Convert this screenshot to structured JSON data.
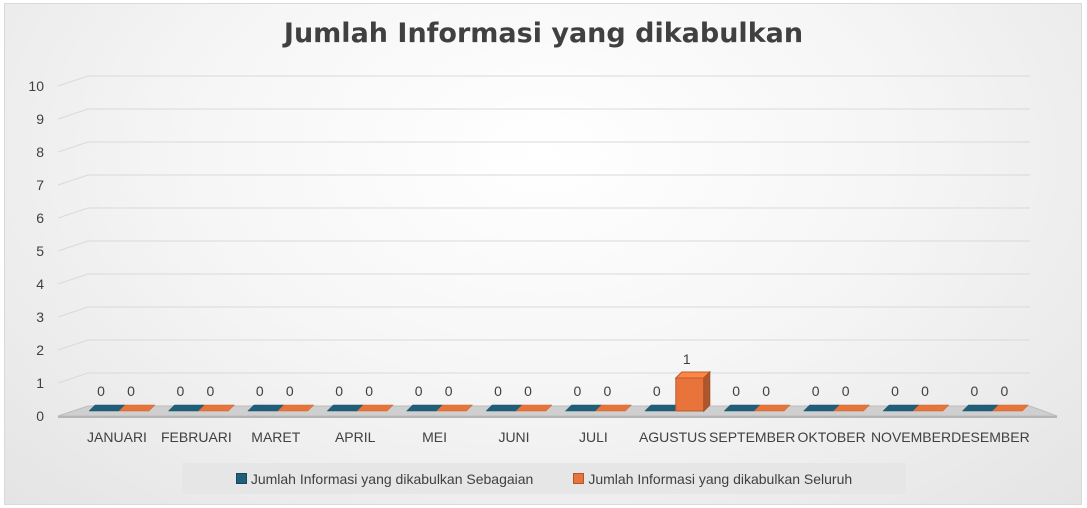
{
  "chart_data": {
    "type": "bar",
    "title": "Jumlah Informasi yang dikabulkan",
    "categories": [
      "JANUARI",
      "FEBRUARI",
      "MARET",
      "APRIL",
      "MEI",
      "JUNI",
      "JULI",
      "AGUSTUS",
      "SEPTEMBER",
      "OKTOBER",
      "NOVEMBER",
      "DESEMBER"
    ],
    "series": [
      {
        "name": "Jumlah Informasi yang dikabulkan Sebagaian",
        "values": [
          0,
          0,
          0,
          0,
          0,
          0,
          0,
          0,
          0,
          0,
          0,
          0
        ],
        "color": "#1f5f7a"
      },
      {
        "name": "Jumlah Informasi yang dikabulkan Seluruh",
        "values": [
          0,
          0,
          0,
          0,
          0,
          0,
          0,
          1,
          0,
          0,
          0,
          0
        ],
        "color": "#e8743b"
      }
    ],
    "ylim": [
      0,
      10
    ],
    "yticks": [
      0,
      1,
      2,
      3,
      4,
      5,
      6,
      7,
      8,
      9,
      10
    ],
    "grid": true,
    "legend_position": "bottom",
    "data_labels": true,
    "style": "3d-clustered-column"
  }
}
